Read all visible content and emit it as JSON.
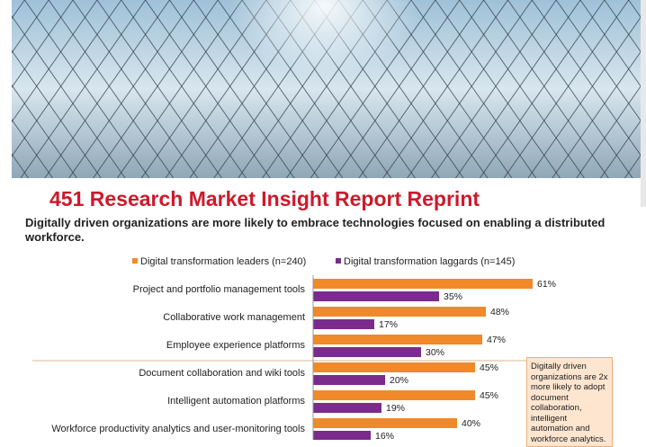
{
  "header": {
    "title": "451 Research Market Insight Report Reprint"
  },
  "chart_data": {
    "type": "bar",
    "orientation": "horizontal",
    "title": "Digitally driven organizations are more likely to embrace technologies focused on enabling a distributed workforce.",
    "categories": [
      "Project and portfolio management tools",
      "Collaborative work management",
      "Employee experience platforms",
      "Document collaboration and wiki tools",
      "Intelligent automation platforms",
      "Workforce productivity analytics and user-monitoring tools"
    ],
    "series": [
      {
        "name": "Digital transformation leaders (n=240)",
        "color": "#f0892a",
        "values": [
          61,
          48,
          47,
          45,
          45,
          40
        ],
        "value_labels": [
          "61%",
          "48%",
          "47%",
          "45%",
          "45%",
          "40%"
        ]
      },
      {
        "name": "Digital transformation laggards (n=145)",
        "color": "#7a2b8c",
        "values": [
          35,
          17,
          30,
          20,
          19,
          16
        ],
        "value_labels": [
          "35%",
          "17%",
          "30%",
          "20%",
          "19%",
          "16%"
        ]
      }
    ],
    "annotation": "Digitally driven organizations are 2x more likely to adopt document collaboration, intelligent automation and workforce analytics."
  }
}
